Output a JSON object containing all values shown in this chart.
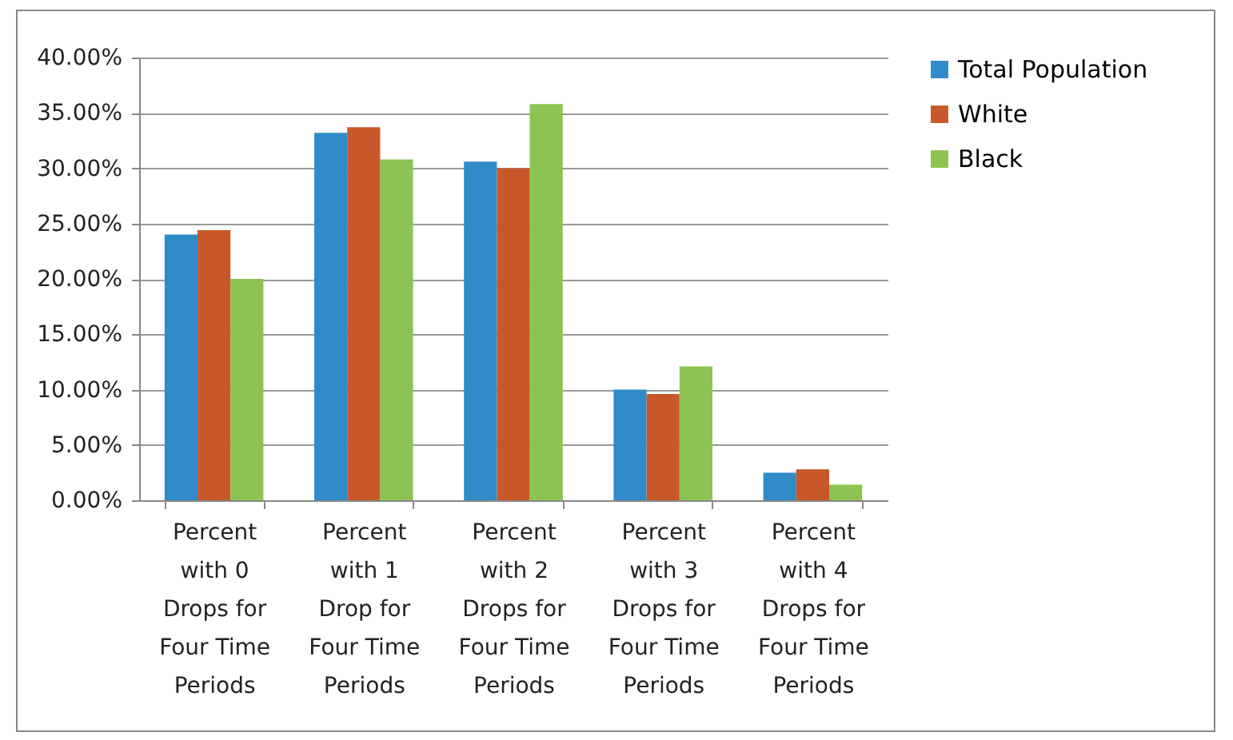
{
  "chart_data": {
    "type": "bar",
    "categories": [
      "Percent with 0 Drops for Four Time Periods",
      "Percent with 1 Drop for Four Time Periods",
      "Percent with 2 Drops for Four Time Periods",
      "Percent with 3 Drops for Four Time Periods",
      "Percent with 4 Drops for Four Time Periods"
    ],
    "series": [
      {
        "name": "Total Population",
        "color": "#2e8bc8",
        "values": [
          24.0,
          33.2,
          30.6,
          10.0,
          2.5
        ]
      },
      {
        "name": "White",
        "color": "#c8582a",
        "values": [
          24.4,
          33.7,
          30.0,
          9.6,
          2.8
        ]
      },
      {
        "name": "Black",
        "color": "#8dc352",
        "values": [
          20.0,
          30.8,
          35.8,
          12.1,
          1.4
        ]
      }
    ],
    "ylim": [
      0,
      40
    ],
    "yticks": [
      {
        "value": 0,
        "label": "0.00%"
      },
      {
        "value": 5,
        "label": "5.00%"
      },
      {
        "value": 10,
        "label": "10.00%"
      },
      {
        "value": 15,
        "label": "15.00%"
      },
      {
        "value": 20,
        "label": "20.00%"
      },
      {
        "value": 25,
        "label": "25.00%"
      },
      {
        "value": 30,
        "label": "30.00%"
      },
      {
        "value": 35,
        "label": "35.00%"
      },
      {
        "value": 40,
        "label": "40.00%"
      }
    ],
    "grid": "y",
    "legend": "right"
  }
}
